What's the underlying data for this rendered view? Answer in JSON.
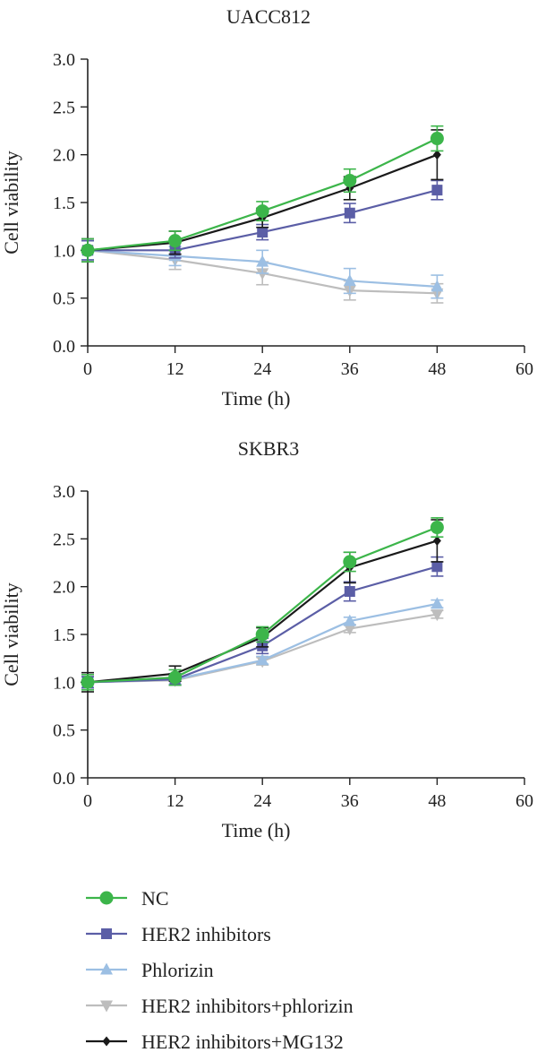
{
  "chart_data": [
    {
      "type": "line",
      "title": "UACC812",
      "xlabel": "Time (h)",
      "ylabel": "Cell viability",
      "xlim": [
        0,
        60
      ],
      "ylim": [
        0,
        3
      ],
      "xticks": [
        "0",
        "12",
        "24",
        "36",
        "48",
        "60"
      ],
      "yticks": [
        "0.0",
        "0.5",
        "1.0",
        "1.5",
        "2.0",
        "2.5",
        "3.0"
      ],
      "grid": false,
      "x": [
        0,
        12,
        24,
        36,
        48
      ],
      "series": [
        {
          "name": "NC",
          "values": [
            1.0,
            1.1,
            1.41,
            1.73,
            2.17
          ],
          "errors": [
            0.12,
            0.1,
            0.1,
            0.12,
            0.13
          ]
        },
        {
          "name": "HER2 inhibitors",
          "values": [
            1.0,
            1.0,
            1.19,
            1.39,
            1.63
          ],
          "errors": [
            0.1,
            0.08,
            0.08,
            0.1,
            0.1
          ]
        },
        {
          "name": "Phlorizin",
          "values": [
            1.0,
            0.94,
            0.88,
            0.68,
            0.62
          ],
          "errors": [
            0.1,
            0.1,
            0.12,
            0.13,
            0.12
          ]
        },
        {
          "name": "HER2 inhibitors+phlorizin",
          "values": [
            1.0,
            0.9,
            0.76,
            0.58,
            0.55
          ],
          "errors": [
            0.1,
            0.1,
            0.12,
            0.1,
            0.1
          ]
        },
        {
          "name": "HER2 inhibitors+MG132",
          "values": [
            1.0,
            1.08,
            1.34,
            1.65,
            2.0
          ],
          "errors": [
            0.12,
            0.12,
            0.1,
            0.12,
            0.26
          ]
        }
      ]
    },
    {
      "type": "line",
      "title": "SKBR3",
      "xlabel": "Time (h)",
      "ylabel": "Cell viability",
      "xlim": [
        0,
        60
      ],
      "ylim": [
        0,
        3
      ],
      "xticks": [
        "0",
        "12",
        "24",
        "36",
        "48",
        "60"
      ],
      "yticks": [
        "0.0",
        "0.5",
        "1.0",
        "1.5",
        "2.0",
        "2.5",
        "3.0"
      ],
      "grid": false,
      "x": [
        0,
        12,
        24,
        36,
        48
      ],
      "series": [
        {
          "name": "NC",
          "values": [
            1.0,
            1.05,
            1.5,
            2.26,
            2.62
          ],
          "errors": [
            0.08,
            0.08,
            0.08,
            0.1,
            0.1
          ]
        },
        {
          "name": "HER2 inhibitors",
          "values": [
            1.0,
            1.03,
            1.38,
            1.95,
            2.21
          ],
          "errors": [
            0.06,
            0.06,
            0.08,
            0.1,
            0.1
          ]
        },
        {
          "name": "Phlorizin",
          "values": [
            1.0,
            1.03,
            1.23,
            1.64,
            1.82
          ],
          "errors": [
            0.05,
            0.05,
            0.04,
            0.04,
            0.04
          ]
        },
        {
          "name": "HER2 inhibitors+phlorizin",
          "values": [
            1.0,
            1.02,
            1.22,
            1.56,
            1.71
          ],
          "errors": [
            0.05,
            0.05,
            0.04,
            0.04,
            0.04
          ]
        },
        {
          "name": "HER2 inhibitors+MG132",
          "values": [
            1.0,
            1.09,
            1.47,
            2.2,
            2.48
          ],
          "errors": [
            0.1,
            0.08,
            0.1,
            0.16,
            0.22
          ]
        }
      ]
    }
  ],
  "legend": {
    "placement": "bottom-left",
    "items": [
      {
        "label": "NC",
        "color": "#3cb54a",
        "marker": "circle"
      },
      {
        "label": "HER2 inhibitors",
        "color": "#5b5ea6",
        "marker": "square"
      },
      {
        "label": "Phlorizin",
        "color": "#9cbfe3",
        "marker": "triangle-up"
      },
      {
        "label": "HER2 inhibitors+phlorizin",
        "color": "#bdbdbd",
        "marker": "triangle-down"
      },
      {
        "label": "HER2 inhibitors+MG132",
        "color": "#1a1a1a",
        "marker": "diamond"
      }
    ]
  }
}
